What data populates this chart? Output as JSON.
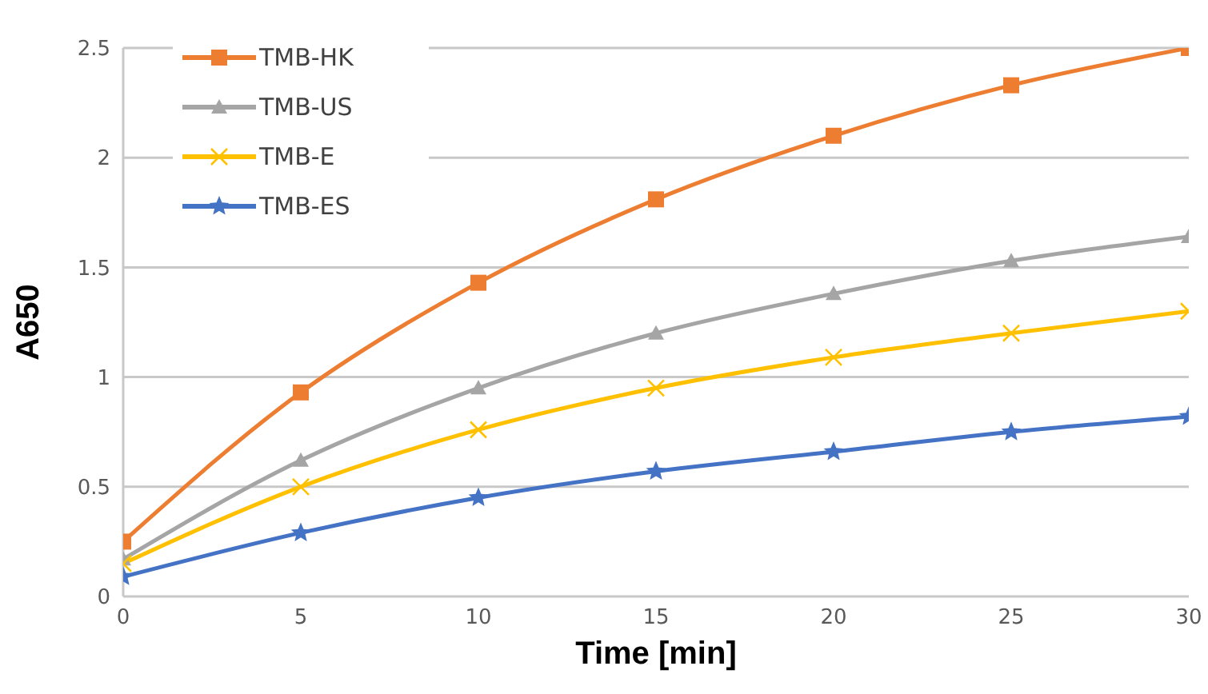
{
  "chart_data": {
    "type": "line",
    "xlabel": "Time [min]",
    "ylabel": "A650",
    "x": [
      0,
      5,
      10,
      15,
      20,
      25,
      30
    ],
    "series": [
      {
        "name": "TMB-HK",
        "color": "#ed7d31",
        "marker": "square",
        "values": [
          0.25,
          0.93,
          1.43,
          1.81,
          2.1,
          2.33,
          2.5
        ]
      },
      {
        "name": "TMB-US",
        "color": "#a5a5a5",
        "marker": "triangle",
        "values": [
          0.17,
          0.62,
          0.95,
          1.2,
          1.38,
          1.53,
          1.64
        ]
      },
      {
        "name": "TMB-E",
        "color": "#ffc000",
        "marker": "cross",
        "values": [
          0.15,
          0.5,
          0.76,
          0.95,
          1.09,
          1.2,
          1.3
        ]
      },
      {
        "name": "TMB-ES",
        "color": "#4472c4",
        "marker": "star",
        "values": [
          0.09,
          0.29,
          0.45,
          0.57,
          0.66,
          0.75,
          0.82
        ]
      }
    ],
    "xlim": [
      0,
      30
    ],
    "xticks": [
      0,
      5,
      10,
      15,
      20,
      25,
      30
    ],
    "ylim": [
      0,
      2.5
    ],
    "yticks": [
      0,
      0.5,
      1,
      1.5,
      2,
      2.5
    ],
    "grid": "y",
    "legend": "top left",
    "line_style": "solid"
  }
}
